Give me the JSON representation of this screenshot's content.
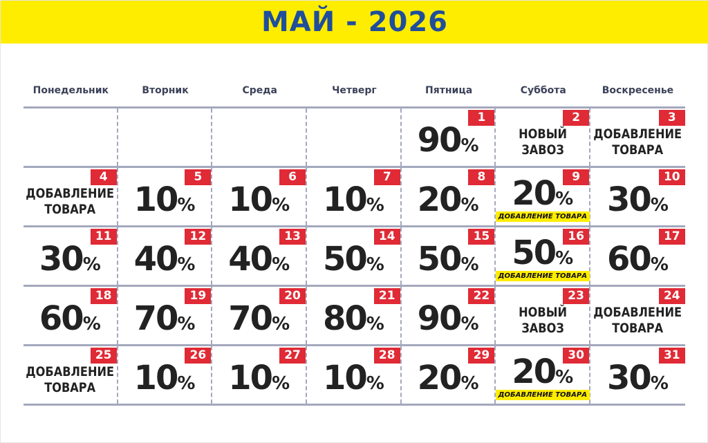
{
  "title": "МАЙ - 2026",
  "colors": {
    "banner": "#FFED00",
    "title": "#1F4E9C",
    "badge": "#E02A35",
    "tag": "#FFED00"
  },
  "weekdays": [
    "Понедельник",
    "Вторник",
    "Среда",
    "Четверг",
    "Пятница",
    "Суббота",
    "Воскресенье"
  ],
  "weeks": [
    [
      null,
      null,
      null,
      null,
      {
        "day": "1",
        "value": "90",
        "unit": "%"
      },
      {
        "day": "2",
        "text": [
          "НОВЫЙ",
          "ЗАВОЗ"
        ]
      },
      {
        "day": "3",
        "text": [
          "ДОБАВЛЕНИЕ",
          "ТОВАРА"
        ]
      }
    ],
    [
      {
        "day": "4",
        "text": [
          "ДОБАВЛЕНИЕ",
          "ТОВАРА"
        ]
      },
      {
        "day": "5",
        "value": "10",
        "unit": "%"
      },
      {
        "day": "6",
        "value": "10",
        "unit": "%"
      },
      {
        "day": "7",
        "value": "10",
        "unit": "%"
      },
      {
        "day": "8",
        "value": "20",
        "unit": "%"
      },
      {
        "day": "9",
        "value": "20",
        "unit": "%",
        "tag": "ДОБАВЛЕНИЕ ТОВАРА"
      },
      {
        "day": "10",
        "value": "30",
        "unit": "%"
      }
    ],
    [
      {
        "day": "11",
        "value": "30",
        "unit": "%"
      },
      {
        "day": "12",
        "value": "40",
        "unit": "%"
      },
      {
        "day": "13",
        "value": "40",
        "unit": "%"
      },
      {
        "day": "14",
        "value": "50",
        "unit": "%"
      },
      {
        "day": "15",
        "value": "50",
        "unit": "%"
      },
      {
        "day": "16",
        "value": "50",
        "unit": "%",
        "tag": "ДОБАВЛЕНИЕ ТОВАРА"
      },
      {
        "day": "17",
        "value": "60",
        "unit": "%"
      }
    ],
    [
      {
        "day": "18",
        "value": "60",
        "unit": "%"
      },
      {
        "day": "19",
        "value": "70",
        "unit": "%"
      },
      {
        "day": "20",
        "value": "70",
        "unit": "%"
      },
      {
        "day": "21",
        "value": "80",
        "unit": "%"
      },
      {
        "day": "22",
        "value": "90",
        "unit": "%"
      },
      {
        "day": "23",
        "text": [
          "НОВЫЙ",
          "ЗАВОЗ"
        ]
      },
      {
        "day": "24",
        "text": [
          "ДОБАВЛЕНИЕ",
          "ТОВАРА"
        ]
      }
    ],
    [
      {
        "day": "25",
        "text": [
          "ДОБАВЛЕНИЕ",
          "ТОВАРА"
        ]
      },
      {
        "day": "26",
        "value": "10",
        "unit": "%"
      },
      {
        "day": "27",
        "value": "10",
        "unit": "%"
      },
      {
        "day": "28",
        "value": "10",
        "unit": "%"
      },
      {
        "day": "29",
        "value": "20",
        "unit": "%"
      },
      {
        "day": "30",
        "value": "20",
        "unit": "%",
        "tag": "ДОБАВЛЕНИЕ ТОВАРА"
      },
      {
        "day": "31",
        "value": "30",
        "unit": "%"
      }
    ]
  ]
}
